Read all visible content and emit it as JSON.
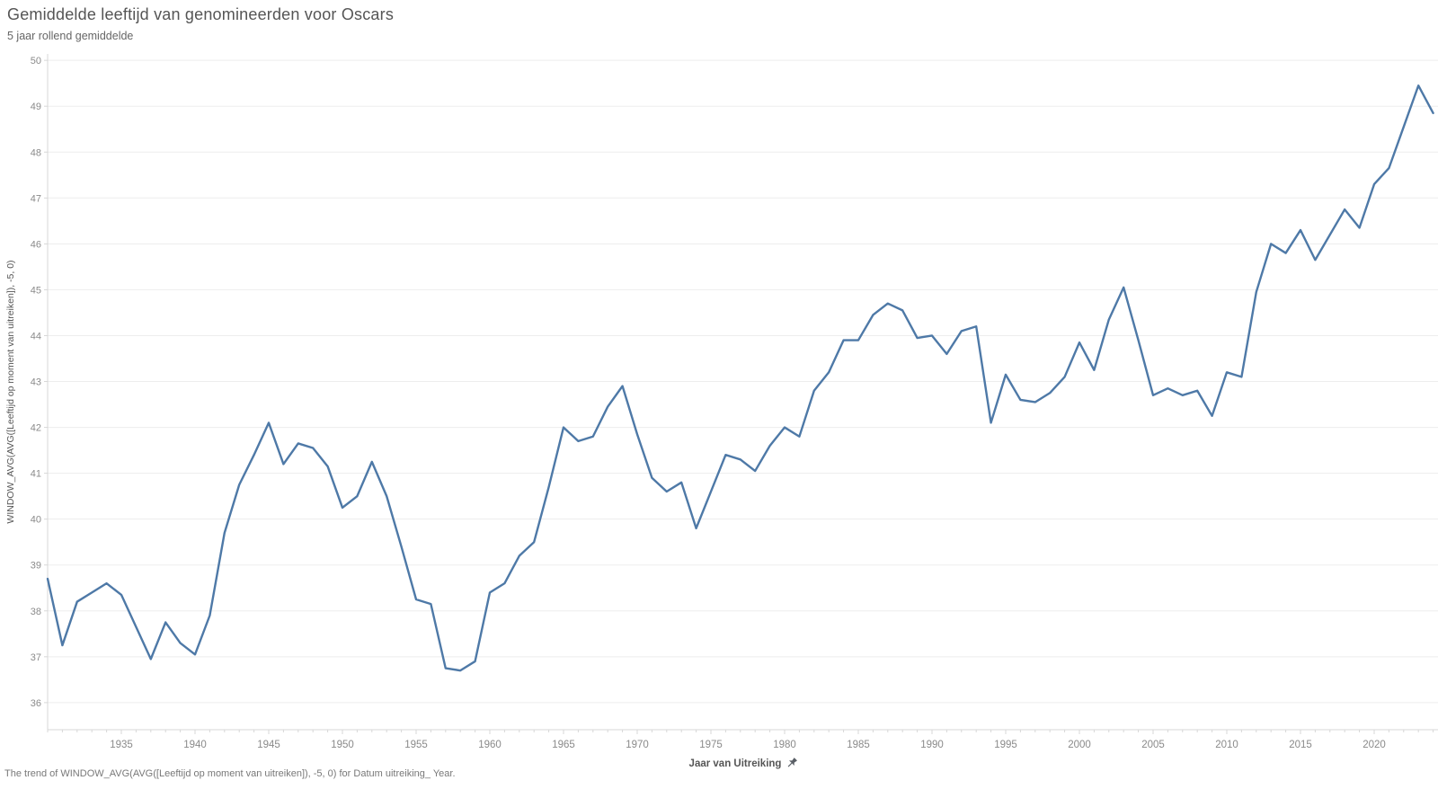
{
  "header": {
    "title": "Gemiddelde leeftijd van genomineerden voor Oscars",
    "subtitle": "5 jaar rollend gemiddelde"
  },
  "caption": "The trend of WINDOW_AVG(AVG([Leeftijd op moment van uitreiken]), -5, 0) for Datum uitreiking_ Year.",
  "colors": {
    "line": "#4e79a7",
    "grid": "#ededed",
    "axis": "#d7d7d7",
    "tick_label": "#8a8a8a",
    "title": "#555555",
    "axis_title": "#555555",
    "caption": "#787878"
  },
  "icons": {
    "x_axis_pin": "pin-icon"
  },
  "chart_data": {
    "type": "line",
    "title": "Gemiddelde leeftijd van genomineerden voor Oscars",
    "subtitle": "5 jaar rollend gemiddelde",
    "xlabel": "Jaar van Uitreiking",
    "ylabel": "WINDOW_AVG(AVG([Leeftijd op moment van uitreiken]), -5, 0)",
    "grid": "horizontal",
    "legend": "none",
    "xlim": [
      1930,
      2024.33
    ],
    "ylim": [
      35.41,
      50.14
    ],
    "x_ticks": [
      1935,
      1940,
      1945,
      1950,
      1955,
      1960,
      1965,
      1970,
      1975,
      1980,
      1985,
      1990,
      1995,
      2000,
      2005,
      2010,
      2015,
      2020
    ],
    "y_ticks": [
      36,
      37,
      38,
      39,
      40,
      41,
      42,
      43,
      44,
      45,
      46,
      47,
      48,
      49,
      50
    ],
    "series": [
      {
        "name": "5 jaar rollend gemiddelde",
        "x": [
          1930,
          1931,
          1932,
          1933,
          1934,
          1935,
          1936,
          1937,
          1938,
          1939,
          1940,
          1941,
          1942,
          1943,
          1944,
          1945,
          1946,
          1947,
          1948,
          1949,
          1950,
          1951,
          1952,
          1953,
          1954,
          1955,
          1956,
          1957,
          1958,
          1959,
          1960,
          1961,
          1962,
          1963,
          1964,
          1965,
          1966,
          1967,
          1968,
          1969,
          1970,
          1971,
          1972,
          1973,
          1974,
          1975,
          1976,
          1977,
          1978,
          1979,
          1980,
          1981,
          1982,
          1983,
          1984,
          1985,
          1986,
          1987,
          1988,
          1989,
          1990,
          1991,
          1992,
          1993,
          1994,
          1995,
          1996,
          1997,
          1998,
          1999,
          2000,
          2001,
          2002,
          2003,
          2004,
          2005,
          2006,
          2007,
          2008,
          2009,
          2010,
          2011,
          2012,
          2013,
          2014,
          2015,
          2016,
          2017,
          2018,
          2019,
          2020,
          2021,
          2022,
          2023,
          2024
        ],
        "y": [
          38.7,
          37.25,
          38.2,
          38.4,
          38.6,
          38.35,
          37.65,
          36.95,
          37.75,
          37.3,
          37.05,
          37.9,
          39.7,
          40.75,
          41.4,
          42.1,
          41.2,
          41.65,
          41.55,
          41.15,
          40.25,
          40.5,
          41.25,
          40.5,
          39.4,
          38.25,
          38.15,
          36.75,
          36.7,
          36.9,
          38.4,
          38.6,
          39.2,
          39.5,
          40.7,
          42.0,
          41.7,
          41.8,
          42.45,
          42.9,
          41.85,
          40.9,
          40.6,
          40.8,
          39.8,
          40.6,
          41.4,
          41.3,
          41.05,
          41.6,
          42.0,
          41.8,
          42.8,
          43.2,
          43.9,
          43.9,
          44.45,
          44.7,
          44.55,
          43.95,
          44.0,
          43.6,
          44.1,
          44.2,
          42.1,
          43.15,
          42.6,
          42.55,
          42.75,
          43.1,
          43.85,
          43.25,
          44.35,
          45.05,
          43.9,
          42.7,
          42.85,
          42.7,
          42.8,
          42.25,
          43.2,
          43.1,
          44.95,
          46.0,
          45.8,
          46.3,
          45.65,
          46.2,
          46.75,
          46.35,
          47.3,
          47.65,
          48.55,
          49.45,
          48.85
        ]
      }
    ]
  }
}
